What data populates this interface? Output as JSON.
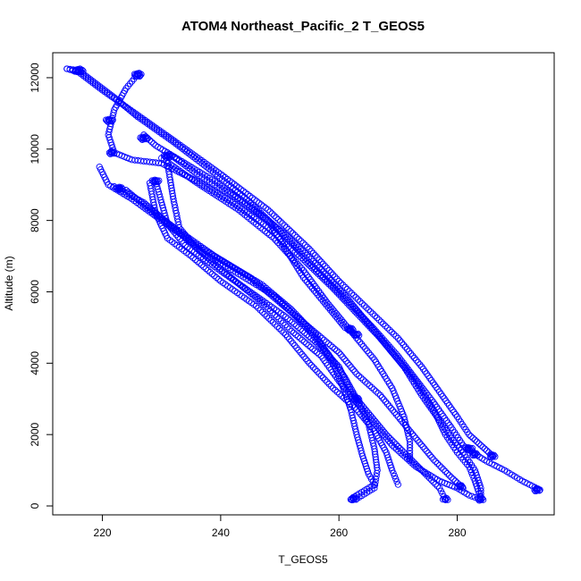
{
  "chart_data": {
    "type": "scatter",
    "title": "ATOM4 Northeast_Pacific_2 T_GEOS5",
    "xlabel": "T_GEOS5",
    "ylabel": "Altitude (m)",
    "xlim": [
      211.6,
      296.4
    ],
    "ylim": [
      -250,
      12700
    ],
    "x_ticks": [
      220,
      240,
      260,
      280
    ],
    "y_ticks": [
      0,
      2000,
      4000,
      6000,
      8000,
      10000,
      12000
    ],
    "grid": false,
    "legend": "none",
    "marker": "open-circle",
    "color": "#0000ff",
    "profiles": [
      {
        "points": [
          [
            214,
            12250
          ],
          [
            216,
            12200
          ],
          [
            218,
            11950
          ],
          [
            222,
            11450
          ],
          [
            226,
            10900
          ],
          [
            232,
            10200
          ],
          [
            238,
            9450
          ],
          [
            244,
            8650
          ],
          [
            250,
            7700
          ],
          [
            256,
            6650
          ],
          [
            262,
            5650
          ],
          [
            266,
            4950
          ],
          [
            270,
            4200
          ],
          [
            273,
            3550
          ],
          [
            276,
            2900
          ],
          [
            279,
            2200
          ],
          [
            281,
            1700
          ],
          [
            283,
            1450
          ],
          [
            285,
            1250
          ],
          [
            288,
            1000
          ],
          [
            291,
            700
          ],
          [
            294,
            450
          ]
        ]
      },
      {
        "points": [
          [
            214,
            12250
          ],
          [
            216,
            12150
          ],
          [
            220,
            11650
          ],
          [
            226,
            10950
          ],
          [
            232,
            10250
          ],
          [
            240,
            9300
          ],
          [
            248,
            8300
          ],
          [
            255,
            7200
          ],
          [
            260,
            6300
          ],
          [
            265,
            5500
          ],
          [
            270,
            4700
          ],
          [
            274,
            3900
          ],
          [
            277,
            3200
          ],
          [
            280,
            2500
          ],
          [
            282,
            2000
          ],
          [
            284,
            1700
          ],
          [
            286,
            1400
          ]
        ]
      },
      {
        "points": [
          [
            226,
            12100
          ],
          [
            224,
            11700
          ],
          [
            222,
            11100
          ],
          [
            221,
            10400
          ],
          [
            222,
            9900
          ],
          [
            225,
            9700
          ],
          [
            230,
            9600
          ],
          [
            236,
            9100
          ],
          [
            242,
            8500
          ],
          [
            248,
            7800
          ],
          [
            254,
            6900
          ],
          [
            259,
            6100
          ],
          [
            263,
            5400
          ],
          [
            267,
            4700
          ],
          [
            271,
            3900
          ],
          [
            274,
            3100
          ],
          [
            277,
            2400
          ],
          [
            279,
            1900
          ],
          [
            281,
            1500
          ],
          [
            283,
            1000
          ],
          [
            284,
            500
          ],
          [
            284,
            180
          ]
        ]
      },
      {
        "points": [
          [
            227,
            10400
          ],
          [
            229,
            10100
          ],
          [
            233,
            9700
          ],
          [
            239,
            9100
          ],
          [
            245,
            8400
          ],
          [
            251,
            7600
          ],
          [
            256,
            6800
          ],
          [
            261,
            5900
          ],
          [
            265,
            5100
          ],
          [
            269,
            4300
          ],
          [
            273,
            3500
          ],
          [
            276,
            2700
          ],
          [
            278,
            2000
          ],
          [
            280,
            1500
          ],
          [
            282,
            1100
          ],
          [
            283,
            700
          ],
          [
            284,
            200
          ]
        ]
      },
      {
        "points": [
          [
            230,
            9750
          ],
          [
            236,
            9050
          ],
          [
            243,
            8300
          ],
          [
            249,
            7500
          ],
          [
            254,
            6600
          ],
          [
            258,
            5700
          ],
          [
            262,
            4900
          ],
          [
            266,
            4100
          ],
          [
            269,
            3300
          ],
          [
            271,
            2500
          ],
          [
            272,
            1800
          ],
          [
            272,
            1300
          ]
        ]
      },
      {
        "points": [
          [
            231,
            9900
          ],
          [
            236,
            9300
          ],
          [
            242,
            8700
          ],
          [
            248,
            8000
          ],
          [
            251,
            7200
          ],
          [
            254,
            6400
          ],
          [
            257,
            5800
          ],
          [
            261,
            5000
          ],
          [
            263,
            4800
          ]
        ]
      },
      {
        "points": [
          [
            219.5,
            9500
          ],
          [
            221,
            9000
          ],
          [
            225,
            8600
          ],
          [
            230,
            8000
          ],
          [
            235,
            7400
          ],
          [
            241,
            6800
          ],
          [
            247,
            6200
          ],
          [
            252,
            5500
          ],
          [
            256,
            4800
          ],
          [
            259,
            4000
          ],
          [
            261,
            3200
          ],
          [
            262,
            2700
          ],
          [
            263,
            2000
          ],
          [
            264,
            1400
          ],
          [
            265,
            900
          ],
          [
            266,
            600
          ],
          [
            263,
            300
          ],
          [
            262,
            180
          ]
        ]
      },
      {
        "points": [
          [
            222,
            8950
          ],
          [
            227,
            8500
          ],
          [
            232,
            7800
          ],
          [
            237,
            7100
          ],
          [
            243,
            6500
          ],
          [
            249,
            5900
          ],
          [
            254,
            5100
          ],
          [
            258,
            4300
          ],
          [
            261,
            3600
          ],
          [
            263,
            3000
          ],
          [
            265,
            2300
          ],
          [
            266,
            1600
          ],
          [
            266.5,
            1000
          ],
          [
            266,
            500
          ],
          [
            263,
            200
          ]
        ]
      },
      {
        "points": [
          [
            229,
            9100
          ],
          [
            230,
            8500
          ],
          [
            231,
            7900
          ],
          [
            234,
            7300
          ],
          [
            239,
            6700
          ],
          [
            245,
            6000
          ],
          [
            251,
            5300
          ],
          [
            256,
            4600
          ],
          [
            260,
            3900
          ],
          [
            262,
            3200
          ],
          [
            265,
            2600
          ],
          [
            268,
            2000
          ],
          [
            271,
            1500
          ],
          [
            274,
            1000
          ],
          [
            277,
            500
          ],
          [
            278,
            180
          ]
        ]
      },
      {
        "points": [
          [
            231,
            9600
          ],
          [
            232,
            8600
          ],
          [
            233,
            7800
          ],
          [
            236,
            7200
          ],
          [
            241,
            6500
          ],
          [
            247,
            5700
          ],
          [
            252,
            4900
          ],
          [
            257,
            4200
          ],
          [
            260,
            3500
          ],
          [
            263,
            2900
          ],
          [
            266,
            2300
          ],
          [
            269,
            1700
          ],
          [
            273,
            1100
          ],
          [
            277,
            700
          ],
          [
            280,
            500
          ],
          [
            282,
            300
          ],
          [
            284,
            180
          ]
        ]
      },
      {
        "points": [
          [
            228,
            9050
          ],
          [
            229,
            8200
          ],
          [
            231,
            7500
          ],
          [
            235,
            7000
          ],
          [
            240,
            6300
          ],
          [
            246,
            5600
          ],
          [
            251,
            4800
          ],
          [
            255,
            4000
          ],
          [
            259,
            3300
          ],
          [
            263,
            2700
          ],
          [
            266,
            2100
          ],
          [
            268,
            1500
          ],
          [
            269,
            1000
          ],
          [
            270,
            600
          ]
        ]
      },
      {
        "points": [
          [
            224,
            8850
          ],
          [
            228,
            8300
          ],
          [
            233,
            7700
          ],
          [
            239,
            7000
          ],
          [
            245,
            6400
          ],
          [
            250,
            5700
          ],
          [
            255,
            5000
          ],
          [
            260,
            4300
          ],
          [
            263,
            3700
          ],
          [
            267,
            3100
          ],
          [
            270,
            2500
          ],
          [
            273,
            1900
          ],
          [
            276,
            1300
          ],
          [
            279,
            800
          ],
          [
            281,
            500
          ]
        ]
      }
    ],
    "clusters": [
      {
        "x": 216,
        "y": 12200,
        "n": 14
      },
      {
        "x": 226,
        "y": 12080,
        "n": 12
      },
      {
        "x": 221.2,
        "y": 10800,
        "n": 10
      },
      {
        "x": 221.6,
        "y": 9900,
        "n": 8
      },
      {
        "x": 227,
        "y": 10300,
        "n": 10
      },
      {
        "x": 231,
        "y": 9800,
        "n": 12
      },
      {
        "x": 229,
        "y": 9100,
        "n": 10
      },
      {
        "x": 223,
        "y": 8900,
        "n": 8
      },
      {
        "x": 262,
        "y": 4950,
        "n": 8
      },
      {
        "x": 263,
        "y": 4800,
        "n": 6
      },
      {
        "x": 263,
        "y": 3000,
        "n": 8
      },
      {
        "x": 262.5,
        "y": 200,
        "n": 8
      },
      {
        "x": 282,
        "y": 1600,
        "n": 10
      },
      {
        "x": 283,
        "y": 1450,
        "n": 8
      },
      {
        "x": 286,
        "y": 1400,
        "n": 8
      },
      {
        "x": 284,
        "y": 190,
        "n": 8
      },
      {
        "x": 280.5,
        "y": 550,
        "n": 6
      },
      {
        "x": 293.5,
        "y": 450,
        "n": 8
      },
      {
        "x": 278,
        "y": 190,
        "n": 6
      }
    ]
  }
}
